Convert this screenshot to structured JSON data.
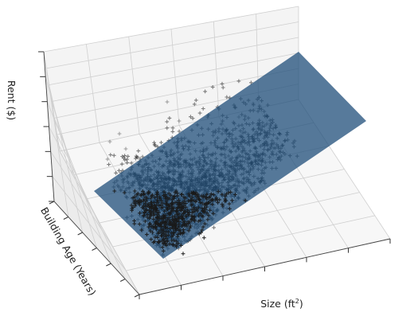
{
  "chart_data": {
    "type": "scatter",
    "subtype": "3d-scatter-with-regression-plane",
    "xlabel": "Size (ft",
    "xlabel_superscript": "2",
    "xlabel_close": ")",
    "ylabel": "Building Age (Years)",
    "zlabel": "Rent ($)",
    "tick_labels_shown": false,
    "grid": true,
    "legend": "none",
    "colors": {
      "points": "#1a1a1a",
      "plane": "#1f4e79",
      "pane_left": "#ececec",
      "pane_back": "#f4f4f4",
      "pane_floor": "#f7f7f7",
      "grid": "#cfcfcf"
    },
    "series": [
      {
        "marker": "+",
        "point_count_approx": 2500
      },
      {
        "marker": "plane",
        "opacity": 0.75
      }
    ]
  }
}
